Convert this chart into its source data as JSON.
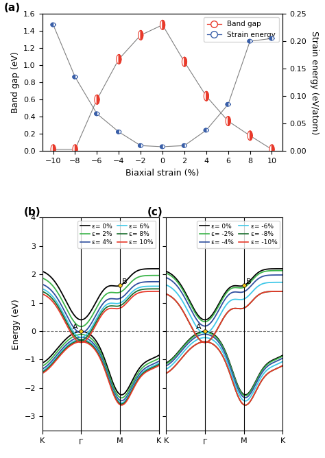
{
  "panel_a": {
    "strains": [
      -10,
      -8,
      -6,
      -4,
      -2,
      0,
      2,
      4,
      6,
      8,
      10
    ],
    "band_gap": [
      0.02,
      0.02,
      0.6,
      1.07,
      1.35,
      1.47,
      1.04,
      0.64,
      0.35,
      0.18,
      0.02
    ],
    "strain_energy": [
      0.23,
      0.135,
      0.068,
      0.035,
      0.01,
      0.008,
      0.01,
      0.038,
      0.085,
      0.2,
      0.205
    ],
    "band_gap_color": "#e8392a",
    "strain_energy_color": "#3a5fa8",
    "ylim_left": [
      0.0,
      1.6
    ],
    "ylim_right": [
      0.0,
      0.25
    ],
    "xlabel": "Biaxial strain (%)",
    "ylabel_left": "Band gap (eV)",
    "ylabel_right": "Strain energy (eV/atom)"
  },
  "panel_b": {
    "ylim": [
      -3.5,
      4.0
    ],
    "legend_labels": [
      "ε= 0%",
      "ε= 2%",
      "ε= 4%",
      "ε= 6%",
      "ε= 8%",
      "ε= 10%"
    ],
    "legend_colors": [
      "#000000",
      "#3cb54a",
      "#3050a0",
      "#40c8e8",
      "#1a6e2e",
      "#e8392a"
    ],
    "strains": [
      0,
      2,
      4,
      6,
      8,
      10
    ]
  },
  "panel_c": {
    "ylim": [
      -3.5,
      4.0
    ],
    "legend_labels": [
      "ε= 0%",
      "ε= -2%",
      "ε= -4%",
      "ε= -6%",
      "ε= -8%",
      "ε= -10%"
    ],
    "legend_colors": [
      "#000000",
      "#3cb54a",
      "#3050a0",
      "#40c8e8",
      "#1a6e2e",
      "#e8392a"
    ],
    "strains": [
      0,
      -2,
      -4,
      -6,
      -8,
      -10
    ]
  },
  "fig_background": "#ffffff",
  "band_gaps_all": {
    "-10": 0.02,
    "-8": 0.02,
    "-6": 0.6,
    "-4": 1.07,
    "-2": 1.35,
    "0": 1.47,
    "2": 1.04,
    "4": 0.64,
    "6": 0.35,
    "8": 0.18,
    "10": 0.02
  }
}
